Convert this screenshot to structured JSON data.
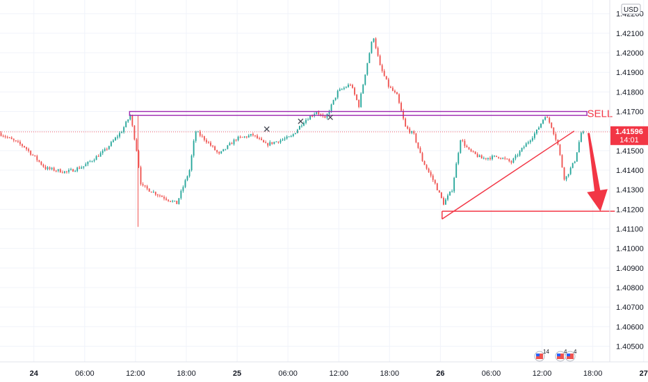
{
  "chart_data": {
    "type": "candlestick",
    "currency": "USD",
    "y_ticks": [
      1.422,
      1.421,
      1.42,
      1.419,
      1.418,
      1.417,
      1.416,
      1.415,
      1.414,
      1.413,
      1.412,
      1.411,
      1.41,
      1.409,
      1.408,
      1.407,
      1.406,
      1.405
    ],
    "y_tick_labels": [
      "1.42200",
      "1.42100",
      "1.42000",
      "1.41900",
      "1.41800",
      "1.41700",
      "",
      "1.41500",
      "1.41400",
      "1.41300",
      "1.41200",
      "1.41100",
      "1.41000",
      "1.40900",
      "1.40800",
      "1.40700",
      "1.40600",
      "1.40500"
    ],
    "ylim": [
      1.4042,
      1.4227
    ],
    "x_ticks": [
      "24",
      "06:00",
      "12:00",
      "18:00",
      "25",
      "06:00",
      "12:00",
      "18:00",
      "26",
      "06:00",
      "12:00",
      "18:00",
      "27"
    ],
    "x_range_hours": [
      -4,
      68
    ],
    "current_price": {
      "label": "1.41596",
      "countdown": "14:01",
      "value": 1.41596,
      "color": "#f23645"
    },
    "colors": {
      "up": "#26a69a",
      "down": "#ef5350",
      "drawing": "#f23645",
      "resistance": "#9c27b0"
    },
    "anchors": [
      {
        "t": -4,
        "p": 1.4159
      },
      {
        "t": -1,
        "p": 1.4152
      },
      {
        "t": 1.5,
        "p": 1.4141
      },
      {
        "t": 4,
        "p": 1.4139
      },
      {
        "t": 6,
        "p": 1.4142
      },
      {
        "t": 8.5,
        "p": 1.415
      },
      {
        "t": 10.5,
        "p": 1.416
      },
      {
        "t": 11.5,
        "p": 1.4168
      },
      {
        "t": 12.2,
        "p": 1.4152
      },
      {
        "t": 12.8,
        "p": 1.4132
      },
      {
        "t": 15,
        "p": 1.4127
      },
      {
        "t": 17,
        "p": 1.4123
      },
      {
        "t": 18.5,
        "p": 1.414
      },
      {
        "t": 19.2,
        "p": 1.416
      },
      {
        "t": 20.5,
        "p": 1.4155
      },
      {
        "t": 22,
        "p": 1.4148
      },
      {
        "t": 24,
        "p": 1.4156
      },
      {
        "t": 26,
        "p": 1.4158
      },
      {
        "t": 27.5,
        "p": 1.4153
      },
      {
        "t": 29,
        "p": 1.4155
      },
      {
        "t": 30.5,
        "p": 1.4157
      },
      {
        "t": 32,
        "p": 1.4165
      },
      {
        "t": 33.5,
        "p": 1.417
      },
      {
        "t": 34.5,
        "p": 1.4166
      },
      {
        "t": 36,
        "p": 1.418
      },
      {
        "t": 37.5,
        "p": 1.4184
      },
      {
        "t": 38.5,
        "p": 1.4173
      },
      {
        "t": 39.5,
        "p": 1.4195
      },
      {
        "t": 40.2,
        "p": 1.4209
      },
      {
        "t": 41,
        "p": 1.4193
      },
      {
        "t": 42,
        "p": 1.4183
      },
      {
        "t": 43,
        "p": 1.4178
      },
      {
        "t": 44,
        "p": 1.4162
      },
      {
        "t": 45,
        "p": 1.4158
      },
      {
        "t": 46,
        "p": 1.4145
      },
      {
        "t": 47.5,
        "p": 1.4133
      },
      {
        "t": 48.5,
        "p": 1.4123
      },
      {
        "t": 49.5,
        "p": 1.413
      },
      {
        "t": 50.5,
        "p": 1.4156
      },
      {
        "t": 51.5,
        "p": 1.415
      },
      {
        "t": 53,
        "p": 1.4146
      },
      {
        "t": 55,
        "p": 1.4147
      },
      {
        "t": 56.5,
        "p": 1.4144
      },
      {
        "t": 58,
        "p": 1.4152
      },
      {
        "t": 59.5,
        "p": 1.416
      },
      {
        "t": 60.5,
        "p": 1.4168
      },
      {
        "t": 61.2,
        "p": 1.4163
      },
      {
        "t": 62,
        "p": 1.4153
      },
      {
        "t": 62.8,
        "p": 1.4135
      },
      {
        "t": 64,
        "p": 1.4145
      },
      {
        "t": 64.8,
        "p": 1.416
      }
    ],
    "spike_wick": {
      "t": 12.3,
      "high": 1.4168,
      "low": 1.4111
    },
    "resistance_line": {
      "price_top": 1.417,
      "price_bottom": 1.4168,
      "t_start": 11.3,
      "t_end": 65.3
    },
    "support_line": {
      "price": 1.4119,
      "t_start": 48.2,
      "t_end": 68.6
    },
    "trendline": {
      "t_start": 48.2,
      "p_start": 1.4115,
      "t_end": 63.8,
      "p_end": 1.416
    },
    "wedge_edge": {
      "t": 48.2,
      "p_top": 1.4119,
      "p_bottom": 1.4115
    },
    "sell_arrow": {
      "t_start": 65.5,
      "p_start": 1.4159,
      "t_end": 66.9,
      "p_end": 1.4119
    },
    "sell_label": "SELL",
    "x_markers": [
      {
        "t": 27.5,
        "p": 1.4161
      },
      {
        "t": 31.5,
        "p": 1.4165
      },
      {
        "t": 35,
        "p": 1.4167
      }
    ],
    "events": [
      {
        "count": "14"
      },
      {
        "count": "4"
      },
      {
        "count": "4"
      }
    ]
  }
}
